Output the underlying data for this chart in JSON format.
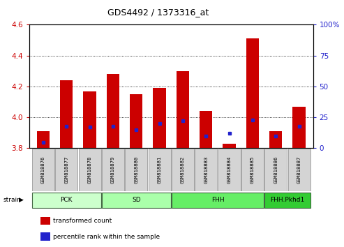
{
  "title": "GDS4492 / 1373316_at",
  "samples": [
    "GSM818876",
    "GSM818877",
    "GSM818878",
    "GSM818879",
    "GSM818880",
    "GSM818881",
    "GSM818882",
    "GSM818883",
    "GSM818884",
    "GSM818885",
    "GSM818886",
    "GSM818887"
  ],
  "transformed_count": [
    3.91,
    4.24,
    4.17,
    4.28,
    4.15,
    4.19,
    4.3,
    4.04,
    3.83,
    4.51,
    3.91,
    4.07
  ],
  "percentile_rank": [
    5,
    18,
    17,
    18,
    15,
    20,
    22,
    10,
    12,
    23,
    10,
    18
  ],
  "bar_color": "#cc0000",
  "blue_color": "#2222cc",
  "ymin": 3.8,
  "ymax": 4.6,
  "y2min": 0,
  "y2max": 100,
  "yticks": [
    3.8,
    4.0,
    4.2,
    4.4,
    4.6
  ],
  "y2ticks": [
    0,
    25,
    50,
    75,
    100
  ],
  "ylabel_color": "#cc0000",
  "y2label_color": "#2222cc",
  "background_color": "#ffffff",
  "bar_width": 0.55,
  "groups": [
    {
      "label": "PCK",
      "indices": [
        0,
        1,
        2
      ],
      "color": "#ccffcc"
    },
    {
      "label": "SD",
      "indices": [
        3,
        4,
        5
      ],
      "color": "#aaffaa"
    },
    {
      "label": "FHH",
      "indices": [
        6,
        7,
        8,
        9
      ],
      "color": "#66ee66"
    },
    {
      "label": "FHH.Pkhd1",
      "indices": [
        10,
        11
      ],
      "color": "#33cc33"
    }
  ],
  "legend_items": [
    {
      "label": "transformed count",
      "color": "#cc0000"
    },
    {
      "label": "percentile rank within the sample",
      "color": "#2222cc"
    }
  ]
}
